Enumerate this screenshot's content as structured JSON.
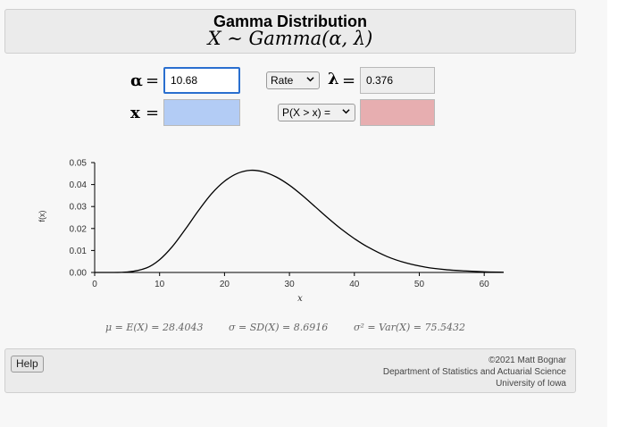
{
  "header": {
    "title": "Gamma Distribution",
    "formula": "X ∼ Gamma(α, λ)"
  },
  "inputs": {
    "alpha_symbol": "α",
    "equals": "=",
    "alpha_value": "10.68",
    "x_symbol": "x",
    "x_value": "",
    "param_select": "Rate",
    "lambda_symbol": "λ",
    "lambda_value": "0.376",
    "prob_select": "P(X > x) =",
    "prob_value": ""
  },
  "chart_data": {
    "type": "line",
    "title": "",
    "xlabel": "x",
    "ylabel": "f(x)",
    "xlim": [
      0,
      63
    ],
    "ylim": [
      0,
      0.05
    ],
    "xticks": [
      0,
      10,
      20,
      30,
      40,
      50,
      60
    ],
    "yticks": [
      "0.00",
      "0.01",
      "0.02",
      "0.03",
      "0.04",
      "0.05"
    ],
    "grid": false,
    "series": [
      {
        "color": "#000000",
        "x": [
          0,
          5,
          8,
          10,
          12,
          14,
          16,
          18,
          20,
          22,
          24,
          26,
          28,
          30,
          32,
          34,
          36,
          38,
          40,
          42,
          45,
          48,
          51,
          54,
          57,
          60,
          63
        ],
        "y": [
          0.0,
          0.0002,
          0.0021,
          0.0058,
          0.0119,
          0.0198,
          0.0282,
          0.0358,
          0.0415,
          0.0451,
          0.0465,
          0.0458,
          0.0434,
          0.0397,
          0.035,
          0.0298,
          0.0246,
          0.0197,
          0.0154,
          0.0117,
          0.0073,
          0.0043,
          0.0024,
          0.0013,
          0.0007,
          0.0003,
          0.0001
        ]
      }
    ]
  },
  "stats": {
    "mean": "μ = E(X) = 28.4043",
    "sd": "σ = SD(X) = 8.6916",
    "var": "σ² = Var(X) = 75.5432"
  },
  "footer": {
    "help_label": "Help",
    "credit_line1": "©2021 Matt Bognar",
    "credit_line2": "Department of Statistics and Actuarial Science",
    "credit_line3": "University of Iowa"
  }
}
